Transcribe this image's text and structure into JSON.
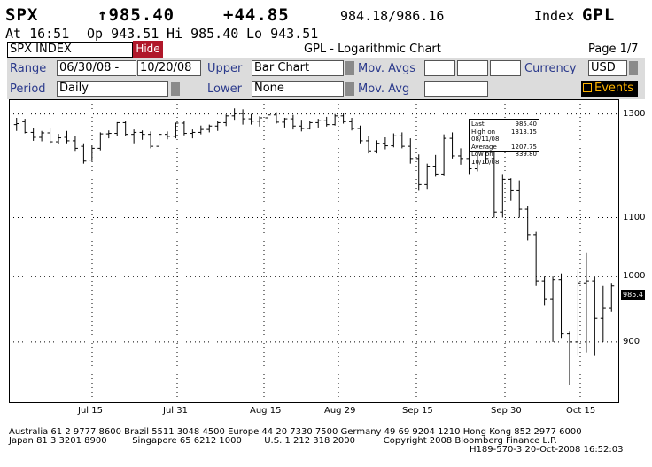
{
  "header": {
    "ticker": "SPX",
    "price": "↑985.40",
    "change": "+44.85",
    "bid_ask": "984.18/986.16",
    "function_label": "Index",
    "function_code": "GPL",
    "time": "At 16:51",
    "open": "Op 943.51",
    "high": "Hi 985.40",
    "low": "Lo 943.51"
  },
  "toolbar": {
    "security": "SPX INDEX",
    "hide_label": "Hide",
    "chart_title": "GPL - Logarithmic Chart",
    "page": "Page 1/7"
  },
  "controls": {
    "range_label": "Range",
    "range_start": "06/30/08",
    "range_dash": "-",
    "range_end": "10/20/08",
    "upper_label": "Upper",
    "upper_value": "Bar Chart",
    "mov_avgs_label": "Mov. Avgs",
    "currency_label": "Currency",
    "currency_value": "USD",
    "period_label": "Period",
    "period_value": "Daily",
    "lower_label": "Lower",
    "lower_value": "None",
    "mov_avg_label": "Mov. Avg",
    "events_label": "Events"
  },
  "legend": {
    "last_label": "Last",
    "last_value": "985.40",
    "high_label": "High on 08/11/08",
    "high_value": "1313.15",
    "avg_label": "Average",
    "avg_value": "1207.75",
    "low_label": "Low on 10/10/08",
    "low_value": "839.80",
    "last_tag": "985.4"
  },
  "chart_data": {
    "type": "bar",
    "scale": "log",
    "ylim": [
      820,
      1320
    ],
    "yticks": [
      900,
      1000,
      1100,
      1300
    ],
    "xticks": [
      "Jul 15",
      "Jul 31",
      "Aug 15",
      "Aug 29",
      "Sep 15",
      "Sep 30",
      "Oct 15"
    ],
    "ohlc": [
      [
        1278,
        1292,
        1265,
        1280
      ],
      [
        1284,
        1290,
        1260,
        1262
      ],
      [
        1262,
        1270,
        1245,
        1252
      ],
      [
        1252,
        1265,
        1244,
        1261
      ],
      [
        1261,
        1270,
        1238,
        1243
      ],
      [
        1243,
        1259,
        1238,
        1251
      ],
      [
        1252,
        1265,
        1240,
        1245
      ],
      [
        1245,
        1255,
        1225,
        1230
      ],
      [
        1234,
        1240,
        1200,
        1205
      ],
      [
        1207,
        1236,
        1205,
        1230
      ],
      [
        1230,
        1262,
        1226,
        1259
      ],
      [
        1259,
        1266,
        1250,
        1260
      ],
      [
        1260,
        1283,
        1255,
        1282
      ],
      [
        1282,
        1286,
        1255,
        1258
      ],
      [
        1258,
        1268,
        1240,
        1262
      ],
      [
        1262,
        1266,
        1247,
        1258
      ],
      [
        1258,
        1264,
        1230,
        1234
      ],
      [
        1234,
        1260,
        1233,
        1258
      ],
      [
        1258,
        1264,
        1248,
        1254
      ],
      [
        1254,
        1282,
        1250,
        1281
      ],
      [
        1281,
        1285,
        1256,
        1260
      ],
      [
        1260,
        1268,
        1250,
        1262
      ],
      [
        1262,
        1276,
        1258,
        1268
      ],
      [
        1268,
        1278,
        1262,
        1275
      ],
      [
        1275,
        1285,
        1265,
        1282
      ],
      [
        1282,
        1299,
        1275,
        1296
      ],
      [
        1296,
        1312,
        1288,
        1301
      ],
      [
        1301,
        1310,
        1278,
        1290
      ],
      [
        1290,
        1300,
        1278,
        1285
      ],
      [
        1285,
        1295,
        1274,
        1292
      ],
      [
        1292,
        1300,
        1280,
        1298
      ],
      [
        1298,
        1304,
        1280,
        1283
      ],
      [
        1283,
        1292,
        1272,
        1290
      ],
      [
        1290,
        1298,
        1268,
        1275
      ],
      [
        1275,
        1288,
        1264,
        1270
      ],
      [
        1270,
        1286,
        1268,
        1282
      ],
      [
        1282,
        1290,
        1272,
        1286
      ],
      [
        1286,
        1294,
        1274,
        1278
      ],
      [
        1278,
        1300,
        1276,
        1296
      ],
      [
        1296,
        1303,
        1280,
        1284
      ],
      [
        1284,
        1292,
        1266,
        1270
      ],
      [
        1270,
        1276,
        1240,
        1245
      ],
      [
        1245,
        1255,
        1220,
        1225
      ],
      [
        1225,
        1246,
        1220,
        1240
      ],
      [
        1240,
        1252,
        1228,
        1235
      ],
      [
        1235,
        1260,
        1232,
        1255
      ],
      [
        1255,
        1262,
        1230,
        1234
      ],
      [
        1234,
        1250,
        1200,
        1210
      ],
      [
        1210,
        1218,
        1150,
        1160
      ],
      [
        1160,
        1200,
        1152,
        1195
      ],
      [
        1195,
        1217,
        1175,
        1180
      ],
      [
        1180,
        1258,
        1176,
        1250
      ],
      [
        1250,
        1262,
        1210,
        1215
      ],
      [
        1215,
        1230,
        1198,
        1210
      ],
      [
        1210,
        1225,
        1180,
        1190
      ],
      [
        1190,
        1242,
        1185,
        1232
      ],
      [
        1232,
        1245,
        1200,
        1210
      ],
      [
        1210,
        1225,
        1100,
        1110
      ],
      [
        1110,
        1180,
        1100,
        1170
      ],
      [
        1170,
        1172,
        1130,
        1150
      ],
      [
        1150,
        1168,
        1100,
        1115
      ],
      [
        1115,
        1120,
        1060,
        1070
      ],
      [
        1070,
        1075,
        985,
        993
      ],
      [
        993,
        1000,
        955,
        965
      ],
      [
        965,
        1000,
        900,
        995
      ],
      [
        995,
        1005,
        906,
        912
      ],
      [
        912,
        915,
        839,
        900
      ],
      [
        900,
        1010,
        880,
        990
      ],
      [
        990,
        1040,
        885,
        993
      ],
      [
        993,
        1000,
        880,
        935
      ],
      [
        935,
        985,
        900,
        950
      ],
      [
        950,
        990,
        945,
        985
      ]
    ]
  }
}
